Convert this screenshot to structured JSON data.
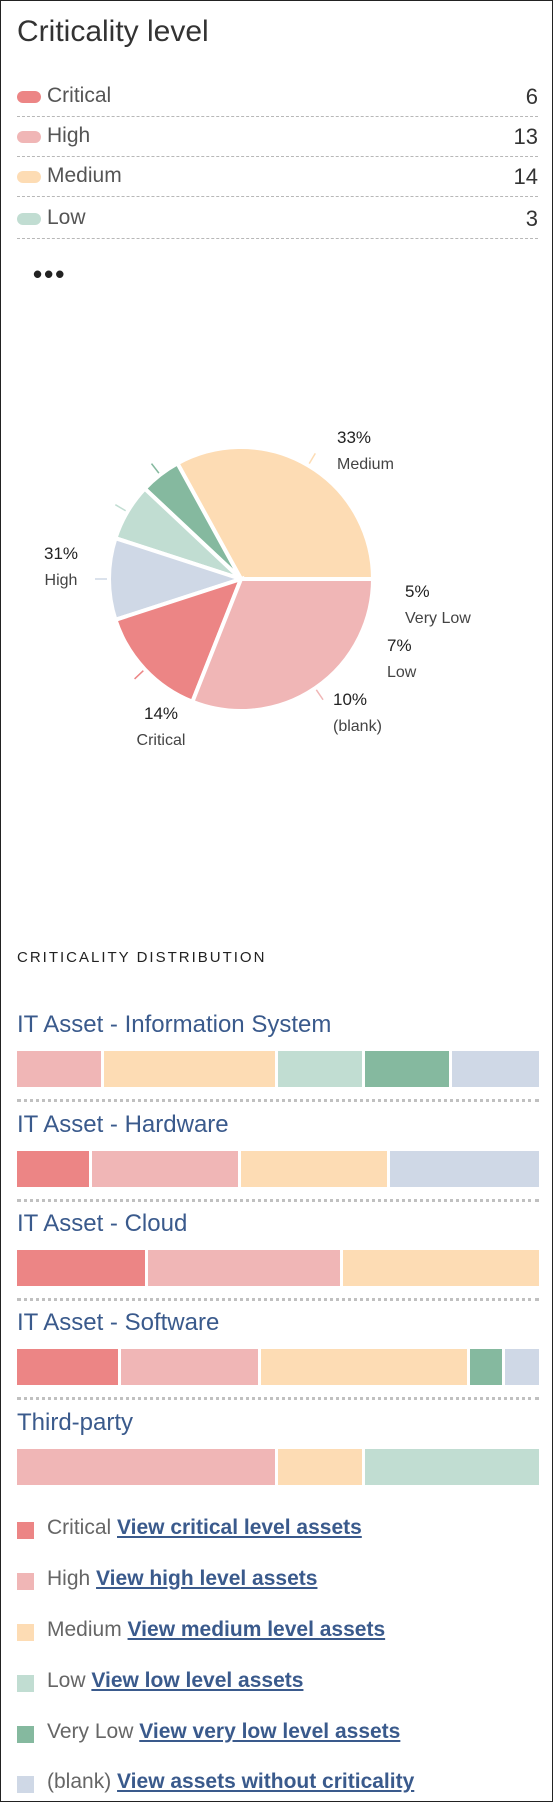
{
  "title": "Criticality level",
  "colors": {
    "critical": "#ec8585",
    "high": "#f0b6b6",
    "medium": "#fddcb4",
    "low": "#c1ddd2",
    "very_low": "#85b99f",
    "blank": "#cfd8e6",
    "link": "#3a5a8c"
  },
  "legend": [
    {
      "label": "Critical",
      "count": "6",
      "color": "#ec8585"
    },
    {
      "label": "High",
      "count": "13",
      "color": "#f0b6b6"
    },
    {
      "label": "Medium",
      "count": "14",
      "color": "#fddcb4"
    },
    {
      "label": "Low",
      "count": "3",
      "color": "#c1ddd2"
    }
  ],
  "more_icon": "ellipsis-icon",
  "more_label": "•••",
  "chart_data": {
    "type": "pie",
    "slices": [
      {
        "label": "Medium",
        "percent_label": "33%",
        "value": 33,
        "color": "#fddcb4"
      },
      {
        "label": "Very Low",
        "percent_label": "5%",
        "value": 5,
        "color": "#85b99f"
      },
      {
        "label": "Low",
        "percent_label": "7%",
        "value": 7,
        "color": "#c1ddd2"
      },
      {
        "label": "(blank)",
        "percent_label": "10%",
        "value": 10,
        "color": "#cfd8e6"
      },
      {
        "label": "Critical",
        "percent_label": "14%",
        "value": 14,
        "color": "#ec8585"
      },
      {
        "label": "High",
        "percent_label": "31%",
        "value": 31,
        "color": "#f0b6b6"
      }
    ]
  },
  "distribution": {
    "heading": "CRITICALITY DISTRIBUTION",
    "items": [
      {
        "name": "IT Asset - Information System",
        "segments": [
          {
            "level": "High",
            "fraction": 0.166,
            "color": "#f0b6b6"
          },
          {
            "level": "Medium",
            "fraction": 0.334,
            "color": "#fddcb4"
          },
          {
            "level": "Low",
            "fraction": 0.166,
            "color": "#c1ddd2"
          },
          {
            "level": "Very Low",
            "fraction": 0.167,
            "color": "#85b99f"
          },
          {
            "level": "(blank)",
            "fraction": 0.167,
            "color": "#cfd8e6"
          }
        ]
      },
      {
        "name": "IT Asset - Hardware",
        "segments": [
          {
            "level": "Critical",
            "fraction": 0.143,
            "color": "#ec8585"
          },
          {
            "level": "High",
            "fraction": 0.286,
            "color": "#f0b6b6"
          },
          {
            "level": "Medium",
            "fraction": 0.286,
            "color": "#fddcb4"
          },
          {
            "level": "(blank)",
            "fraction": 0.285,
            "color": "#cfd8e6"
          }
        ]
      },
      {
        "name": "IT Asset - Cloud",
        "segments": [
          {
            "level": "Critical",
            "fraction": 0.25,
            "color": "#ec8585"
          },
          {
            "level": "High",
            "fraction": 0.375,
            "color": "#f0b6b6"
          },
          {
            "level": "Medium",
            "fraction": 0.375,
            "color": "#fddcb4"
          }
        ]
      },
      {
        "name": "IT Asset - Software",
        "segments": [
          {
            "level": "Critical",
            "fraction": 0.2,
            "color": "#ec8585"
          },
          {
            "level": "High",
            "fraction": 0.267,
            "color": "#f0b6b6"
          },
          {
            "level": "Medium",
            "fraction": 0.4,
            "color": "#fddcb4"
          },
          {
            "level": "Very Low",
            "fraction": 0.067,
            "color": "#85b99f"
          },
          {
            "level": "(blank)",
            "fraction": 0.066,
            "color": "#cfd8e6"
          }
        ]
      },
      {
        "name": "Third-party",
        "segments": [
          {
            "level": "High",
            "fraction": 0.5,
            "color": "#f0b6b6"
          },
          {
            "level": "Medium",
            "fraction": 0.167,
            "color": "#fddcb4"
          },
          {
            "level": "Low",
            "fraction": 0.333,
            "color": "#c1ddd2"
          }
        ]
      }
    ]
  },
  "key": [
    {
      "label": "Critical",
      "link": "View critical level assets",
      "color": "#ec8585"
    },
    {
      "label": "High",
      "link": "View high level assets",
      "color": "#f0b6b6"
    },
    {
      "label": "Medium",
      "link": "View medium level assets",
      "color": "#fddcb4"
    },
    {
      "label": "Low",
      "link": "View low level assets",
      "color": "#c1ddd2"
    },
    {
      "label": "Very Low",
      "link": "View very low level assets",
      "color": "#85b99f"
    },
    {
      "label": "(blank)",
      "link": "View assets without criticality",
      "color": "#cfd8e6"
    }
  ]
}
